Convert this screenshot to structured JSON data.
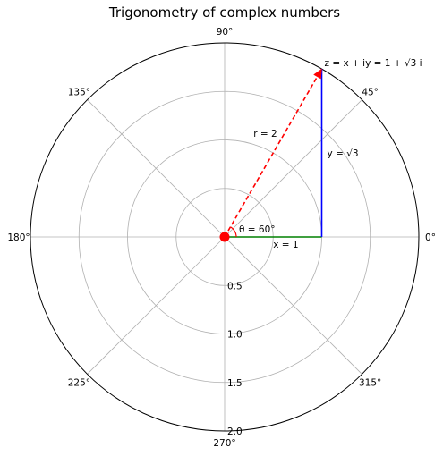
{
  "chart_data": {
    "type": "polar",
    "title": "Trigonometry of complex numbers",
    "angular_ticks": [
      "0°",
      "45°",
      "90°",
      "135°",
      "180°",
      "225°",
      "270°",
      "315°"
    ],
    "radial_ticks": [
      "0.5",
      "1.0",
      "1.5",
      "2.0"
    ],
    "rlim": [
      0,
      2
    ],
    "grid": true,
    "point": {
      "r": 2,
      "theta_deg": 60,
      "x": 1,
      "y": 1.732
    },
    "segments": [
      {
        "name": "modulus",
        "from": [
          0,
          0
        ],
        "to": [
          1,
          1.732
        ],
        "style": "dashed",
        "color": "#ff0000"
      },
      {
        "name": "real-part",
        "from": [
          0,
          0
        ],
        "to": [
          1,
          0
        ],
        "style": "solid",
        "color": "#008000"
      },
      {
        "name": "imaginary-part",
        "from": [
          1,
          0
        ],
        "to": [
          1,
          1.732
        ],
        "style": "solid",
        "color": "#0000ff"
      }
    ],
    "annotations": {
      "z_label": "z = x + iy = 1 + √3 i",
      "r_label": "r = 2",
      "y_label": "y = √3",
      "theta_label": "θ = 60°",
      "x_label": "x = 1"
    },
    "colors": {
      "origin_marker": "#ff0000",
      "grid": "#b0b0b0",
      "frame": "#000000"
    }
  }
}
